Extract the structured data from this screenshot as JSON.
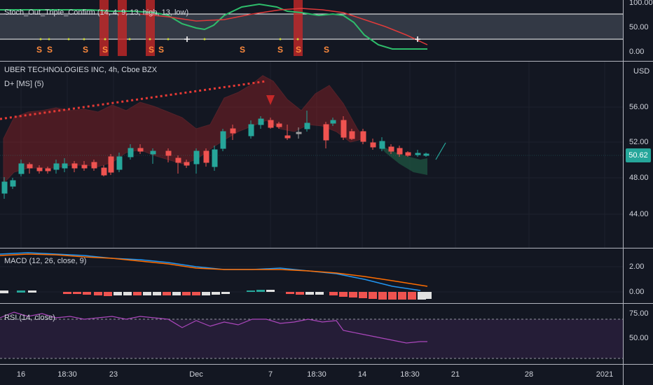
{
  "stoch": {
    "legend": "Stoch_Out_Triple_Confirm (14, 4, 9, 13, high, 13, low)",
    "ticks": [
      "100.00",
      "50.00",
      "0.00"
    ],
    "signal_label": "S",
    "colors": {
      "k": "#2ebd6b",
      "d": "#e03a3a",
      "band": "#ffffff"
    }
  },
  "main": {
    "title": "UBER TECHNOLOGIES INC, 4h, Cboe BZX",
    "indicator": "D+ [MS] (5)",
    "currency": "USD",
    "ticks": [
      "56.00",
      "52.00",
      "48.00",
      "44.00"
    ],
    "last_price": "50.62",
    "colors": {
      "up": "#26a69a",
      "down": "#ef5350",
      "cloud_red": "#7a1f24",
      "cloud_green": "#1d4a3c"
    }
  },
  "macd": {
    "legend": "MACD (12, 26, close, 9)",
    "ticks": [
      "2.00",
      "0.00"
    ],
    "colors": {
      "macd": "#2196f3",
      "signal": "#ff6d00"
    }
  },
  "rsi": {
    "legend": "RSI (14, close)",
    "ticks": [
      "75.00",
      "50.00"
    ],
    "colors": {
      "line": "#ab47bc",
      "band": "#2a1f3d"
    }
  },
  "xaxis": {
    "labels": [
      "16",
      "18:30",
      "23",
      "Dec",
      "7",
      "18:30",
      "14",
      "18:30",
      "21",
      "28",
      "2021"
    ]
  }
}
